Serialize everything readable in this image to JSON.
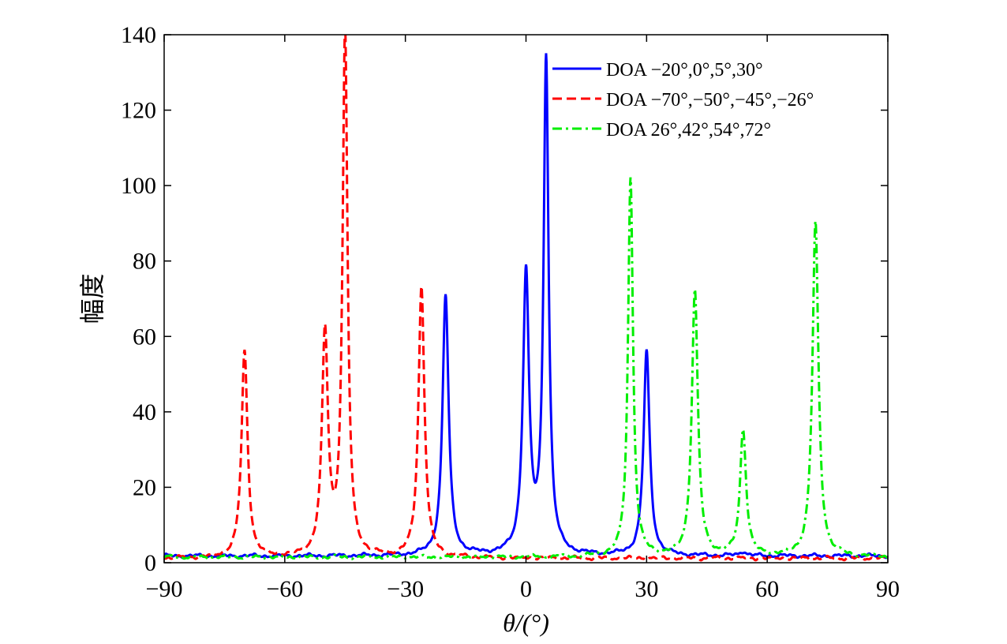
{
  "chart_data": {
    "type": "line",
    "title": "",
    "xlabel": "θ/(°)",
    "ylabel": "幅度",
    "xlim": [
      -90,
      90
    ],
    "ylim": [
      0,
      140
    ],
    "xticks": [
      -90,
      -60,
      -30,
      0,
      30,
      60,
      90
    ],
    "xtick_labels": [
      "−90",
      "−60",
      "−30",
      "0",
      "30",
      "60",
      "90"
    ],
    "yticks": [
      0,
      20,
      40,
      60,
      80,
      100,
      120,
      140
    ],
    "ytick_labels": [
      "0",
      "20",
      "40",
      "60",
      "80",
      "100",
      "120",
      "140"
    ],
    "grid": false,
    "legend_position": "top-right",
    "series": [
      {
        "name": "DOA −20°,0°,5°,30°",
        "color": "#0000ff",
        "style": "solid",
        "baseline": 1.8,
        "peaks": [
          {
            "x": -20,
            "y": 71
          },
          {
            "x": 0,
            "y": 76
          },
          {
            "x": 5,
            "y": 133
          },
          {
            "x": 30,
            "y": 56
          },
          {
            "x": 54,
            "y": 3
          }
        ]
      },
      {
        "name": "DOA −70°,−50°,−45°,−26°",
        "color": "#ff0000",
        "style": "dashed",
        "baseline": 1.2,
        "peaks": [
          {
            "x": -70,
            "y": 56
          },
          {
            "x": -50,
            "y": 60
          },
          {
            "x": -45,
            "y": 140
          },
          {
            "x": -26,
            "y": 73
          }
        ]
      },
      {
        "name": "DOA 26°,42°,54°,72°",
        "color": "#00ee00",
        "style": "dashdot",
        "baseline": 1.5,
        "peaks": [
          {
            "x": 26,
            "y": 102
          },
          {
            "x": 42,
            "y": 72
          },
          {
            "x": 54,
            "y": 35
          },
          {
            "x": 72,
            "y": 90
          }
        ]
      }
    ]
  }
}
